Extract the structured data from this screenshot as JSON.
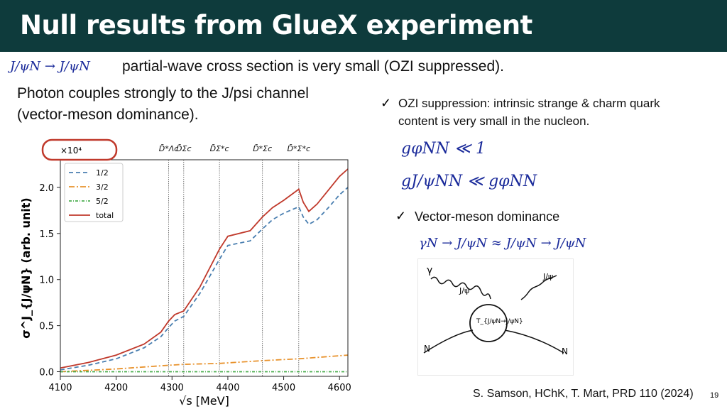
{
  "header": {
    "title": "Null results from GlueX experiment",
    "background": "#0e3b3c"
  },
  "intro": {
    "equation": "J/ψN → J/ψN",
    "text": "partial-wave cross section is very small (OZI suppressed)."
  },
  "photon_note": {
    "lines": [
      "Photon couples strongly to the J/psi channel",
      "(vector-meson dominance)."
    ]
  },
  "ozi": {
    "lines": [
      "OZI suppression: intrinsic strange & charm quark",
      "content is very small in the nucleon."
    ],
    "eq1": "gφNN ≪ 1",
    "eq2": "gJ/ψNN ≪ gφNN"
  },
  "vmd": {
    "label": "Vector-meson dominance",
    "equation": "γN → J/ψN ≈ J/ψN → J/ψN"
  },
  "diagram": {
    "labels": [
      "γ",
      "J/ψ",
      "J/ψ",
      "T_{J/ψN→J/ψN}",
      "N",
      "N"
    ]
  },
  "citation": "S. Samson, HChK, T. Mart, PRD 110 (2024)",
  "page_number": "19",
  "chart_data": {
    "type": "line",
    "xlabel": "√s [MeV]",
    "ylabel": "σ^J_{J/ψN} (arb. unit)",
    "scale_label": "×10⁴",
    "xlim": [
      4100,
      4615
    ],
    "ylim": [
      -0.05,
      2.3
    ],
    "xticks": [
      4100,
      4200,
      4300,
      4400,
      4500,
      4600
    ],
    "yticks": [
      0.0,
      0.5,
      1.0,
      1.5,
      2.0
    ],
    "ytick_labels": [
      "0.0",
      "0.5",
      "1.0",
      "1.5",
      "2.0"
    ],
    "legend_position": "top-left",
    "thresholds": [
      {
        "label": "D̄*Λc",
        "x": 4294
      },
      {
        "label": "D̄Σc",
        "x": 4321
      },
      {
        "label": "D̄Σ*c",
        "x": 4385
      },
      {
        "label": "D̄*Σc",
        "x": 4462
      },
      {
        "label": "D̄*Σ*c",
        "x": 4527
      }
    ],
    "series": [
      {
        "name": "1/2",
        "color": "#4a7fb0",
        "dash": "6,4",
        "x": [
          4100,
          4150,
          4200,
          4250,
          4280,
          4294,
          4305,
          4321,
          4350,
          4385,
          4400,
          4440,
          4462,
          4480,
          4500,
          4527,
          4535,
          4545,
          4560,
          4580,
          4600,
          4615
        ],
        "y": [
          0.02,
          0.07,
          0.14,
          0.26,
          0.38,
          0.48,
          0.55,
          0.6,
          0.85,
          1.22,
          1.37,
          1.42,
          1.55,
          1.65,
          1.72,
          1.79,
          1.68,
          1.6,
          1.65,
          1.78,
          1.92,
          2.0
        ]
      },
      {
        "name": "3/2",
        "color": "#e8922c",
        "dash": "8,3,2,3",
        "x": [
          4100,
          4200,
          4294,
          4321,
          4385,
          4462,
          4527,
          4615
        ],
        "y": [
          0.0,
          0.03,
          0.07,
          0.08,
          0.09,
          0.12,
          0.14,
          0.18
        ]
      },
      {
        "name": "5/2",
        "color": "#4caf50",
        "dash": "4,2,1,2",
        "x": [
          4100,
          4615
        ],
        "y": [
          0.0,
          0.0
        ]
      },
      {
        "name": "total",
        "color": "#c0392b",
        "dash": "",
        "x": [
          4100,
          4150,
          4200,
          4250,
          4280,
          4294,
          4305,
          4321,
          4350,
          4385,
          4400,
          4440,
          4462,
          4480,
          4500,
          4527,
          4535,
          4545,
          4560,
          4580,
          4600,
          4615
        ],
        "y": [
          0.04,
          0.1,
          0.18,
          0.3,
          0.43,
          0.55,
          0.62,
          0.66,
          0.92,
          1.33,
          1.47,
          1.53,
          1.68,
          1.78,
          1.86,
          1.98,
          1.84,
          1.74,
          1.82,
          1.97,
          2.12,
          2.2
        ]
      }
    ]
  }
}
